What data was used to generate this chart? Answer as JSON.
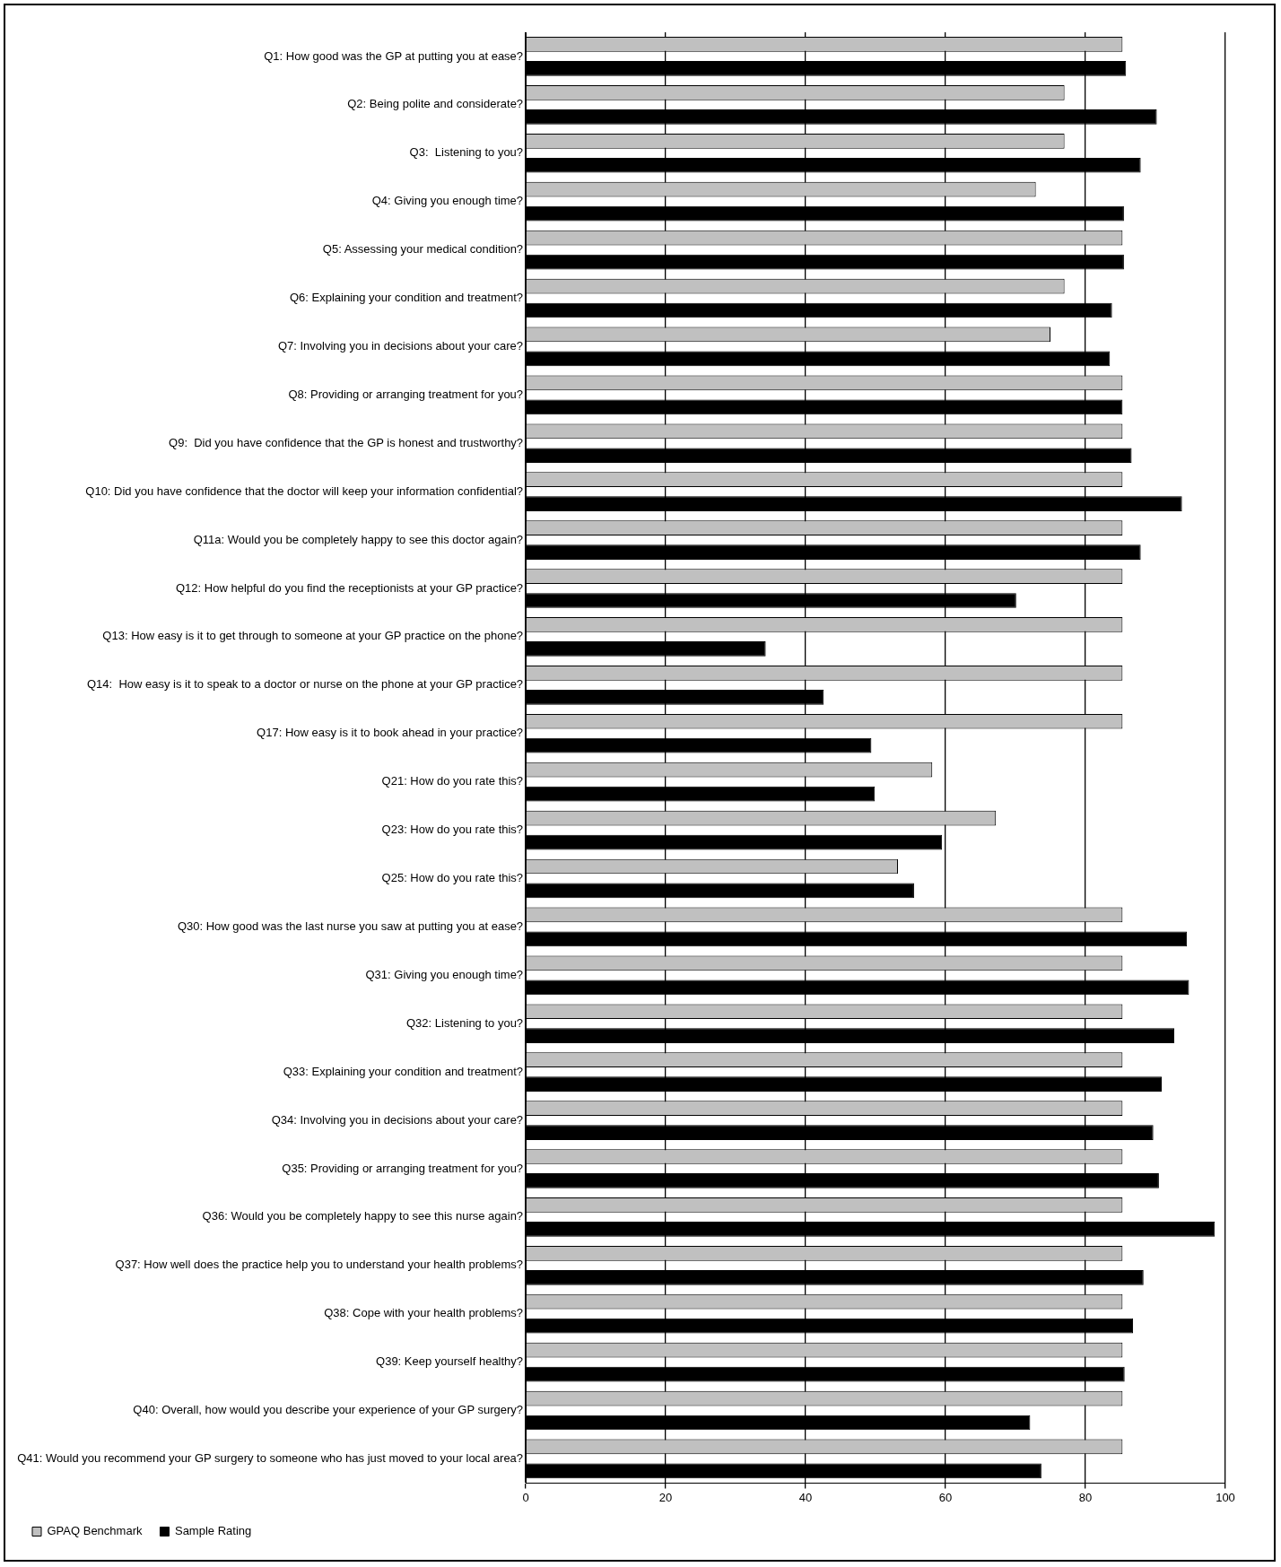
{
  "chart_data": {
    "type": "bar",
    "orientation": "horizontal",
    "categories": [
      "Q1: How good was the GP at putting you at ease?",
      "Q2: Being polite and considerate?",
      "Q3:  Listening to you?",
      "Q4: Giving you enough time?",
      "Q5: Assessing your medical condition?",
      "Q6: Explaining your condition and treatment?",
      "Q7: Involving you in decisions about your care?",
      "Q8: Providing or arranging treatment for you?",
      "Q9:  Did you have confidence that the GP is honest and trustworthy?",
      "Q10: Did you have confidence that the doctor will keep your information confidential?",
      "Q11a: Would you be completely happy to see this doctor again?",
      "Q12: How helpful do you find the receptionists at your GP practice?",
      "Q13: How easy is it to get through to someone at your GP practice on the phone?",
      "Q14:  How easy is it to speak to a doctor or nurse on the phone at your GP practice?",
      "Q17: How easy is it to book ahead in your practice?",
      "Q21: How do you rate this?",
      "Q23: How do you rate this?",
      "Q25: How do you rate this?",
      "Q30: How good was the last nurse you saw at putting you at ease?",
      "Q31: Giving you enough time?",
      "Q32: Listening to you?",
      "Q33: Explaining your condition and treatment?",
      "Q34: Involving you in decisions about your care?",
      "Q35: Providing or arranging treatment for you?",
      "Q36: Would you be completely happy to see this nurse again?",
      "Q37: How well does the practice help you to understand your health problems?",
      "Q38: Cope with your health problems?",
      "Q39: Keep yourself healthy?",
      "Q40: Overall, how would you describe your experience of your GP surgery?",
      "Q41: Would you recommend your GP surgery to someone who has just moved to your local area?"
    ],
    "series": [
      {
        "name": "GPAQ Benchmark",
        "color": "#c0c0c0",
        "values": [
          85.3,
          77,
          77,
          72.9,
          85.3,
          77,
          75,
          85.3,
          85.3,
          85.3,
          85.3,
          85.3,
          85.3,
          85.3,
          85.3,
          58.1,
          67.2,
          53.2,
          85.3,
          85.3,
          85.3,
          85.3,
          85.3,
          85.3,
          85.3,
          85.3,
          85.3,
          85.3,
          85.3,
          85.3
        ]
      },
      {
        "name": "Sample Rating",
        "color": "#000000",
        "values": [
          85.8,
          90.2,
          87.9,
          85.5,
          85.5,
          83.8,
          83.5,
          85.3,
          86.6,
          93.8,
          87.9,
          70.1,
          34.3,
          42.6,
          49.4,
          49.9,
          59.5,
          55.5,
          94.5,
          94.8,
          92.7,
          90.9,
          89.7,
          90.5,
          98.5,
          88.3,
          86.8,
          85.6,
          72.1,
          73.7
        ]
      }
    ],
    "xlim": [
      0,
      100
    ],
    "xticks": [
      0,
      20,
      40,
      60,
      80,
      100
    ],
    "grid": "x",
    "legend": "bottom left"
  }
}
